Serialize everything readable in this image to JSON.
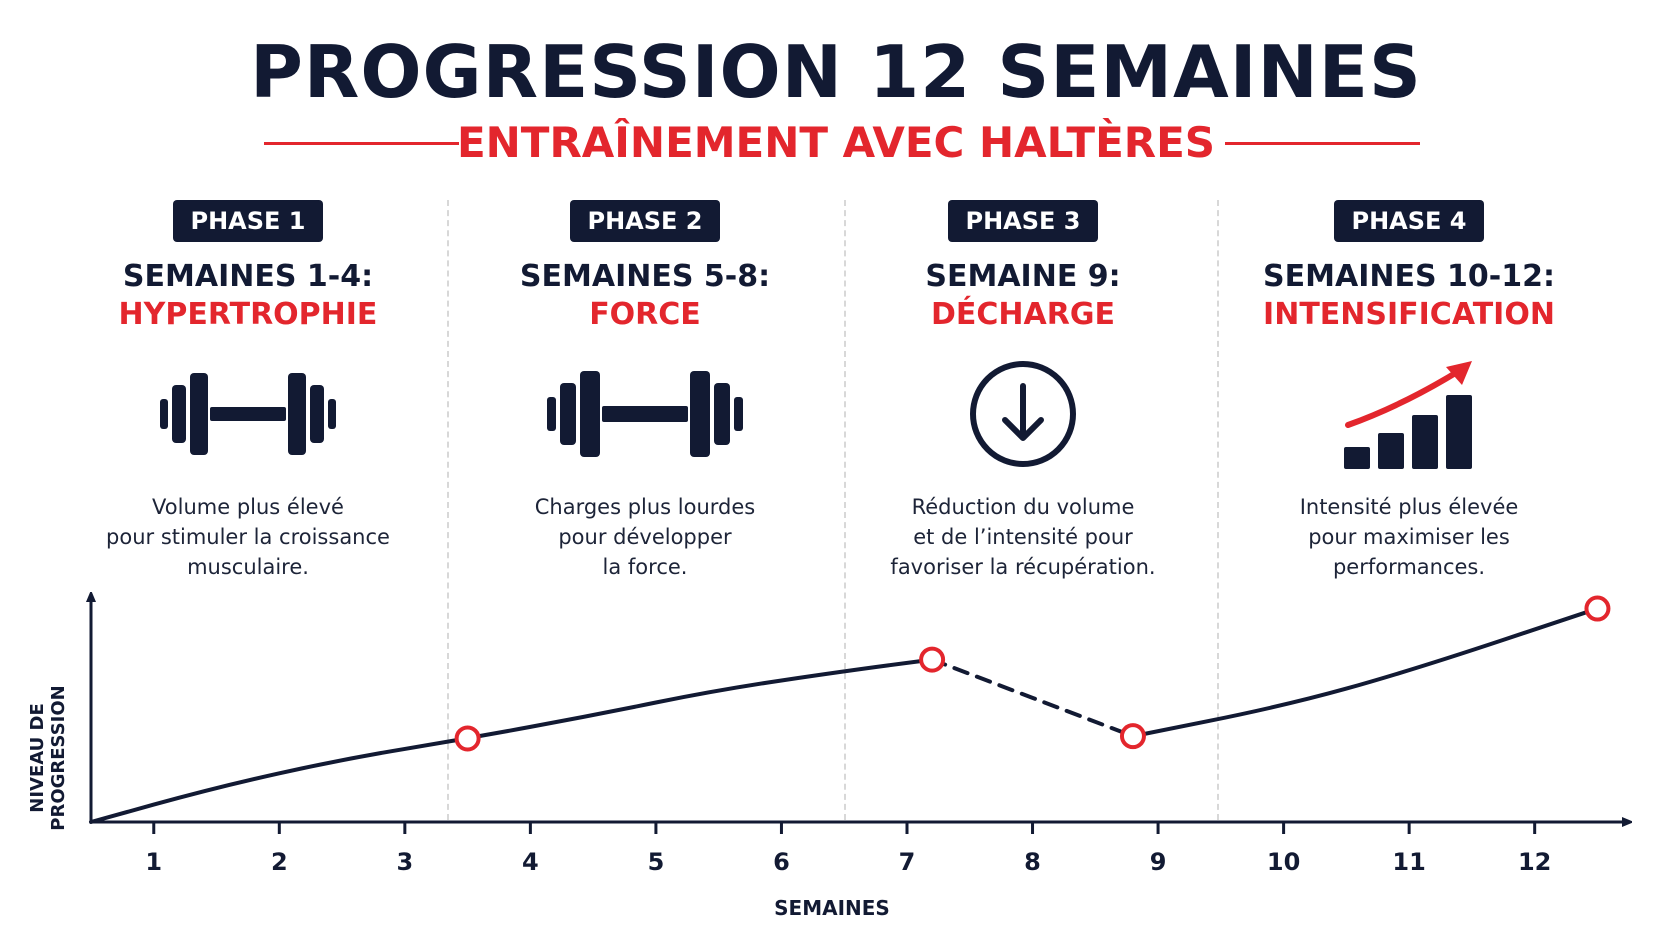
{
  "header": {
    "title": "PROGRESSION 12 SEMAINES",
    "subtitle": "ENTRAÎNEMENT AVEC HALTÈRES"
  },
  "colors": {
    "navy": "#121a33",
    "red": "#e3262d",
    "divider": "#d8d8d8"
  },
  "phases": [
    {
      "badge": "PHASE 1",
      "weeks": "SEMAINES 1-4:",
      "focus": "HYPERTROPHIE",
      "icon": "dumbbell-icon",
      "description": "Volume plus élevé\npour stimuler la croissance\nmusculaire."
    },
    {
      "badge": "PHASE 2",
      "weeks": "SEMAINES 5-8:",
      "focus": "FORCE",
      "icon": "dumbbell-icon",
      "description": "Charges plus lourdes\npour développer\nla force."
    },
    {
      "badge": "PHASE 3",
      "weeks": "SEMAINE 9:",
      "focus": "DÉCHARGE",
      "icon": "down-arrow-circle-icon",
      "description": "Réduction du volume\net de l’intensité pour\nfavoriser la récupération."
    },
    {
      "badge": "PHASE 4",
      "weeks": "SEMAINES 10-12:",
      "focus": "INTENSIFICATION",
      "icon": "rising-bars-icon",
      "description": "Intensité plus élevée\npour maximiser les\nperformances."
    }
  ],
  "chart_data": {
    "type": "line",
    "xlabel": "SEMAINES",
    "ylabel": "NIVEAU DE PROGRESSION",
    "x_ticks": [
      "1",
      "2",
      "3",
      "4",
      "5",
      "6",
      "7",
      "8",
      "9",
      "10",
      "11",
      "12"
    ],
    "xlim": [
      0.5,
      12.6
    ],
    "ylim": [
      0,
      100
    ],
    "grid": false,
    "segments": [
      {
        "style": "solid",
        "points": [
          [
            0.5,
            0
          ],
          [
            1.5,
            15
          ],
          [
            2.5,
            27
          ],
          [
            3.5,
            36
          ],
          [
            4.5,
            46
          ],
          [
            5.5,
            57
          ],
          [
            6.5,
            65
          ],
          [
            7.2,
            70
          ]
        ]
      },
      {
        "style": "dashed",
        "points": [
          [
            7.2,
            70
          ],
          [
            8.8,
            37
          ]
        ]
      },
      {
        "style": "solid",
        "points": [
          [
            8.8,
            37
          ],
          [
            10,
            50
          ],
          [
            11,
            65
          ],
          [
            12.5,
            92
          ]
        ],
        "arrow": true
      }
    ],
    "markers": [
      [
        3.5,
        36
      ],
      [
        7.2,
        70
      ],
      [
        8.8,
        37
      ],
      [
        12.5,
        92
      ]
    ]
  }
}
